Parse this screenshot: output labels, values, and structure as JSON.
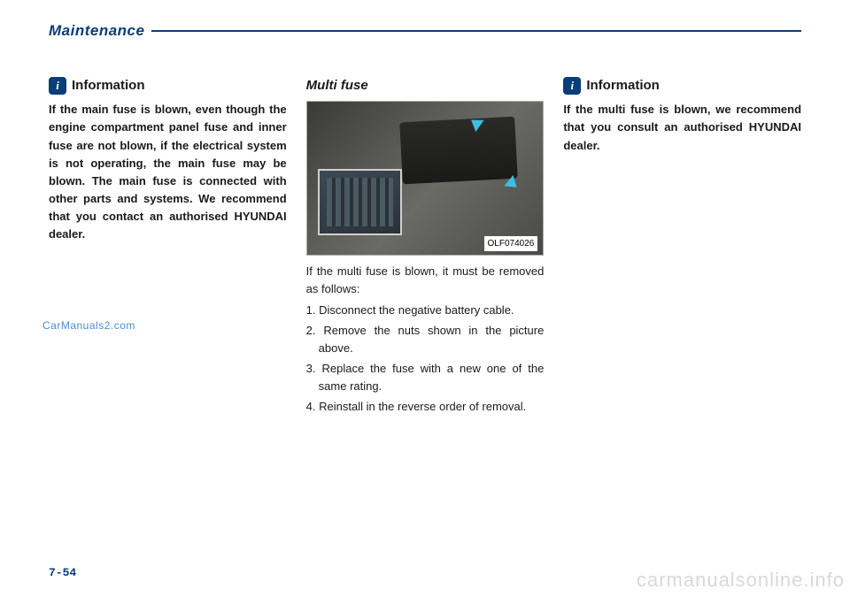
{
  "header": {
    "title": "Maintenance"
  },
  "col1": {
    "info_icon": "i",
    "info_label": "Information",
    "info_text": "If the main fuse is blown, even though the engine compartment panel fuse and inner fuse are not blown, if the electrical system is not operating, the main fuse may be blown. The main fuse is con­nected with other parts and sys­tems. We recommend that you con­tact an authorised HYUNDAI deal­er."
  },
  "col2": {
    "title": "Multi fuse",
    "figure_ref": "OLF074026",
    "intro": "If the multi fuse is blown, it must be removed as follows:",
    "step1": "1. Disconnect the negative battery cable.",
    "step2": "2. Remove the nuts shown in the pic­ture above.",
    "step3": "3. Replace the fuse with a new one of the same rating.",
    "step4": "4. Reinstall in the reverse order of removal."
  },
  "col3": {
    "info_icon": "i",
    "info_label": "Information",
    "info_text": "If the multi fuse is blown, we rec­ommend that you consult an authorised HYUNDAI dealer."
  },
  "page_num": "7-54",
  "watermark_left": "CarManuals2.com",
  "watermark_right": "carmanualsonline.info",
  "colors": {
    "brand": "#0a3d7a",
    "arrow": "#3dbde0"
  }
}
